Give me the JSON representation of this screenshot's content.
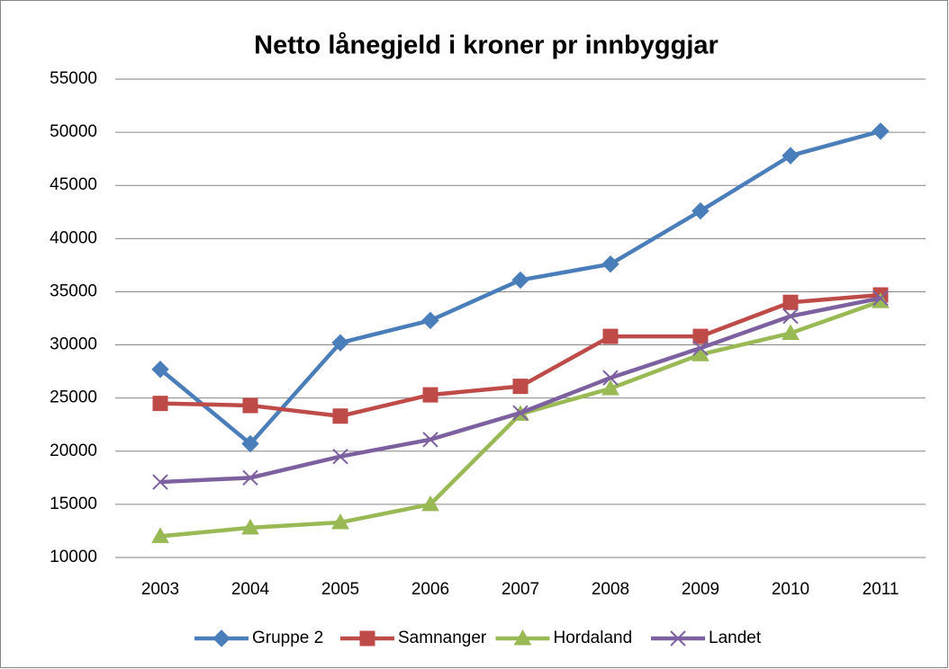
{
  "chart_data": {
    "type": "line",
    "title": "Netto lånegjeld i kroner pr innbyggjar",
    "categories": [
      "2003",
      "2004",
      "2005",
      "2006",
      "2007",
      "2008",
      "2009",
      "2010",
      "2011"
    ],
    "series": [
      {
        "name": "Gruppe 2",
        "color": "#4a7ebb",
        "marker": "diamond",
        "values": [
          27700,
          20700,
          30200,
          32300,
          36100,
          37600,
          42600,
          47800,
          50100
        ]
      },
      {
        "name": "Samnanger",
        "color": "#be4b48",
        "marker": "square",
        "values": [
          24500,
          24300,
          23300,
          25300,
          26100,
          30800,
          30800,
          34000,
          34700
        ]
      },
      {
        "name": "Hordaland",
        "color": "#98b954",
        "marker": "triangle",
        "values": [
          12000,
          12800,
          13300,
          15000,
          23500,
          25900,
          29100,
          31100,
          34100
        ]
      },
      {
        "name": "Landet",
        "color": "#7d60a0",
        "marker": "x",
        "values": [
          17100,
          17500,
          19500,
          21100,
          23600,
          26900,
          29700,
          32700,
          34400
        ]
      }
    ],
    "ylim": [
      10000,
      55000
    ],
    "yticks": [
      10000,
      15000,
      20000,
      25000,
      30000,
      35000,
      40000,
      45000,
      50000,
      55000
    ],
    "grid": true,
    "legend": "bottom"
  }
}
